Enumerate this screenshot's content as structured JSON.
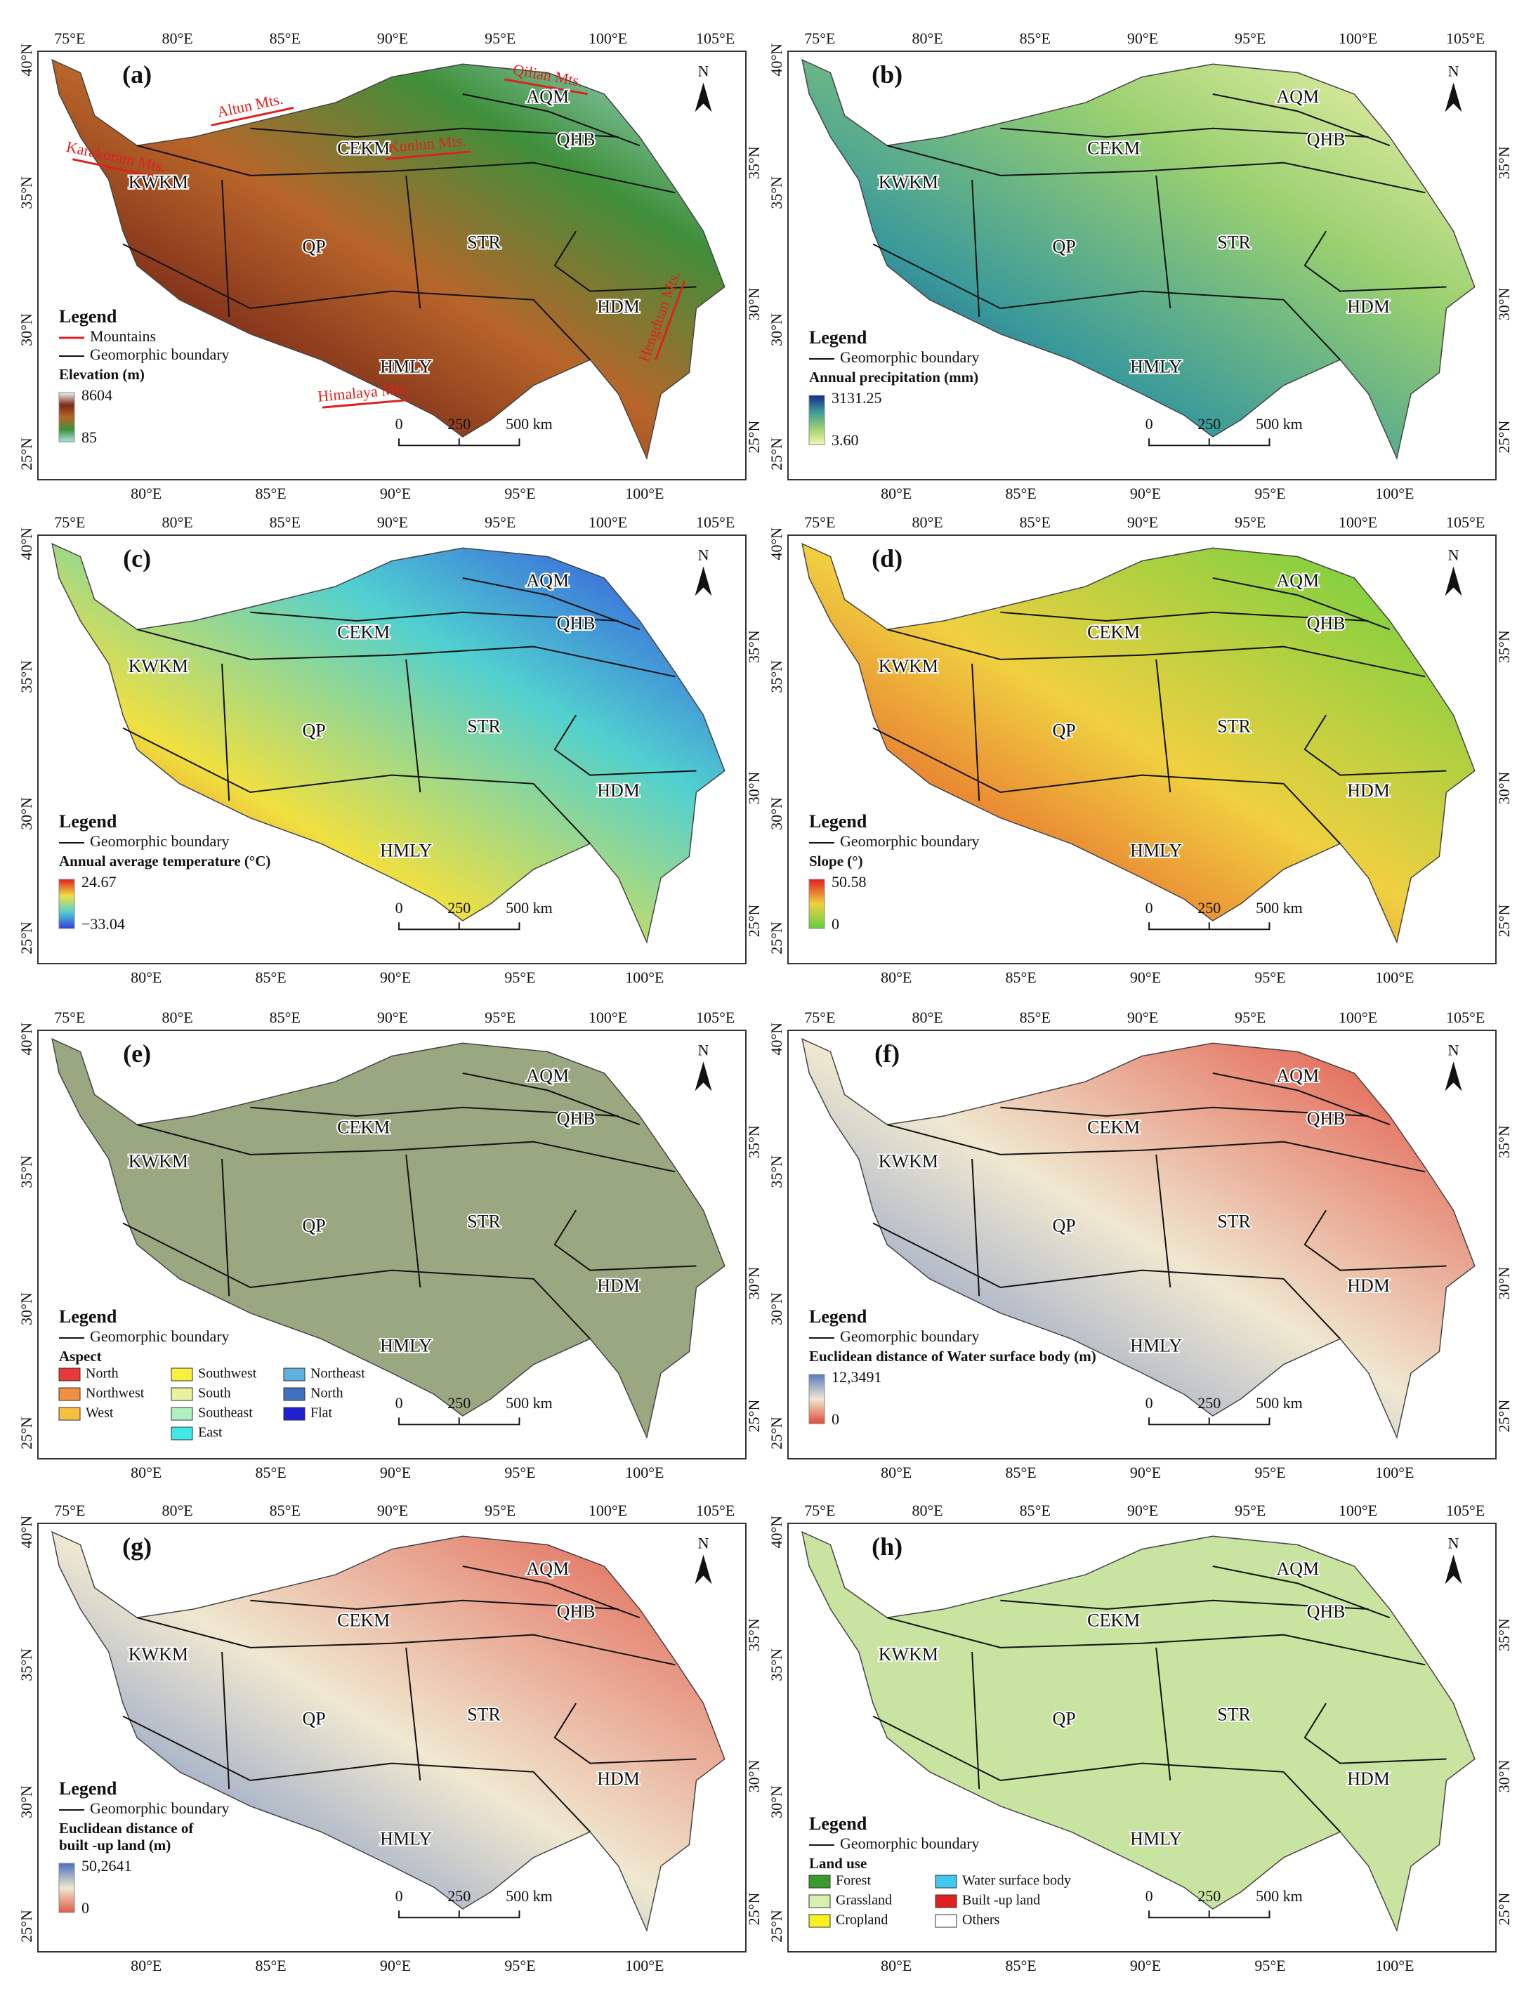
{
  "axes": {
    "lon_top": [
      "75°E",
      "80°E",
      "85°E",
      "90°E",
      "95°E",
      "100°E",
      "105°E"
    ],
    "lon_bottom": [
      "80°E",
      "85°E",
      "90°E",
      "95°E",
      "100°E"
    ],
    "lat_left": [
      "40°N",
      "35°N",
      "30°N",
      "25°N"
    ],
    "lat_right": [
      "35°N",
      "30°N",
      "25°N"
    ]
  },
  "north": "N",
  "scale_bar": [
    "0",
    "250",
    "500 km"
  ],
  "legend_title": "Legend",
  "boundary": "Geomorphic boundary",
  "regions": [
    "AQM",
    "QHB",
    "CEKM",
    "KWKM",
    "QP",
    "STR",
    "HDM",
    "HMLY"
  ],
  "panels": [
    {
      "label": "(a)",
      "mountains": "Mountains",
      "mountain_ranges": [
        "Altun Mts.",
        "Qilian Mts.",
        "Kunlun Mts.",
        "Karakoram Mts.",
        "Himalaya Mts.",
        "Hengduan Mts."
      ],
      "variable": "Elevation (m)",
      "max": "8604",
      "min": "85",
      "colors": [
        "#f2f2f2",
        "#7a2a18",
        "#b8652a",
        "#3f8f3a",
        "#a8e4e0"
      ]
    },
    {
      "label": "(b)",
      "variable": "Annual precipitation (mm)",
      "max": "3131.25",
      "min": "3.60",
      "colors": [
        "#1a2a8a",
        "#3a9a9a",
        "#9ad070",
        "#f5f5b0"
      ]
    },
    {
      "label": "(c)",
      "variable": "Annual average temperature (°C)",
      "max": "24.67",
      "min": "−33.04",
      "colors": [
        "#e02020",
        "#f0e040",
        "#50d0d0",
        "#3040e0"
      ]
    },
    {
      "label": "(d)",
      "variable": "Slope (°)",
      "max": "50.58",
      "min": "0",
      "colors": [
        "#e02020",
        "#f0d040",
        "#60d040"
      ]
    },
    {
      "label": "(e)",
      "variable": "Aspect",
      "map_color": "#9aa882",
      "categories": [
        {
          "label": "North",
          "color": "#e8383a"
        },
        {
          "label": "Northwest",
          "color": "#f09040"
        },
        {
          "label": "West",
          "color": "#f8c040"
        },
        {
          "label": "Southwest",
          "color": "#f8f040"
        },
        {
          "label": "South",
          "color": "#e8f0a0"
        },
        {
          "label": "Southeast",
          "color": "#b0f0c0"
        },
        {
          "label": "East",
          "color": "#40e8e8"
        },
        {
          "label": "Northeast",
          "color": "#60b0e0"
        },
        {
          "label": "North",
          "color": "#4070c0"
        },
        {
          "label": "Flat",
          "color": "#2020d0"
        }
      ]
    },
    {
      "label": "(f)",
      "variable": "Euclidean distance of Water surface body (m)",
      "max": "12,3491",
      "min": "0",
      "colors": [
        "#5a7ac0",
        "#f0e8d0",
        "#e04a3a"
      ]
    },
    {
      "label": "(g)",
      "variable": [
        "Euclidean distance of",
        "built -up land (m)"
      ],
      "max": "50,2641",
      "min": "0",
      "colors": [
        "#4a70c0",
        "#f0e8d0",
        "#e05a4a"
      ]
    },
    {
      "label": "(h)",
      "variable": "Land use",
      "map_color": "#c8e4a0",
      "categories": [
        {
          "label": "Forest",
          "color": "#3a9a30"
        },
        {
          "label": "Grassland",
          "color": "#d8f0b0"
        },
        {
          "label": "Cropland",
          "color": "#f8f020"
        },
        {
          "label": "Water surface body",
          "color": "#40c8f0"
        },
        {
          "label": "Built -up land",
          "color": "#e02020"
        },
        {
          "label": "Others",
          "color": "#ffffff"
        }
      ]
    }
  ]
}
